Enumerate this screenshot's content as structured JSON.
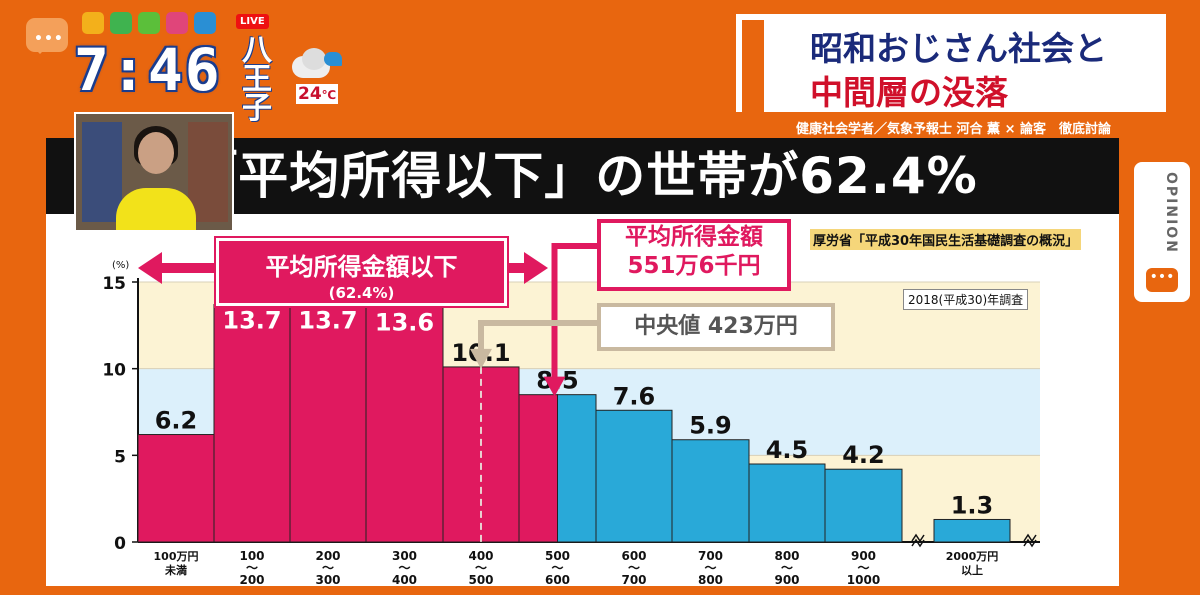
{
  "overlay": {
    "clock": "7:46",
    "live_badge": "LIVE",
    "location": "八王子",
    "temperature": "24",
    "temperature_unit": "℃",
    "weather_icon": "cloudy-rain-icon",
    "app_icons": [
      "bookmark-icon",
      "search-icon",
      "globe-icon",
      "play-icon",
      "cloud-icon"
    ]
  },
  "topic": {
    "line1": "昭和おじさん社会と",
    "line2": "中間層の没落",
    "caption": "健康社会学者／気象予報士 河合 薫 × 論客　徹底討論"
  },
  "side_tab": {
    "label": "OPINION"
  },
  "board": {
    "headline": "「平均所得以下」の世帯が62.4%",
    "source": "厚労省「平成30年国民生活基礎調査の概況」",
    "survey_year": "2018(平成30)年調査",
    "range_label": "平均所得金額以下",
    "range_percent": "(62.4%)",
    "mean_label_l1": "平均所得金額",
    "mean_label_l2": "551万6千円",
    "median_label": "中央値 423万円"
  },
  "colors": {
    "pink": "#e0195f",
    "blue": "#29a9d8",
    "orange": "#e8660f",
    "band_yellow": "#fcf3d4",
    "band_blue": "#dcf0fb"
  },
  "chart_data": {
    "type": "bar",
    "ylabel": "(%)",
    "ylim": [
      0,
      15
    ],
    "yticks": [
      "0",
      "5",
      "10",
      "15"
    ],
    "categories": [
      [
        "100万円",
        "未満"
      ],
      [
        "100",
        "〜",
        "200"
      ],
      [
        "200",
        "〜",
        "300"
      ],
      [
        "300",
        "〜",
        "400"
      ],
      [
        "400",
        "〜",
        "500"
      ],
      [
        "500",
        "〜",
        "600"
      ],
      [
        "600",
        "〜",
        "700"
      ],
      [
        "700",
        "〜",
        "800"
      ],
      [
        "800",
        "〜",
        "900"
      ],
      [
        "900",
        "〜",
        "1000"
      ],
      [
        "2000万円",
        "以上"
      ]
    ],
    "values": [
      6.2,
      13.7,
      13.7,
      13.6,
      10.1,
      8.5,
      7.6,
      5.9,
      4.5,
      4.2,
      1.3
    ],
    "value_labels": [
      "6.2",
      "13.7",
      "13.7",
      "13.6",
      "10.1",
      "8.5",
      "7.6",
      "5.9",
      "4.5",
      "4.2",
      "1.3"
    ],
    "below_mean_count": 5.5,
    "mean_position": 5.5,
    "median_position": 4.5,
    "axis_break": true
  }
}
